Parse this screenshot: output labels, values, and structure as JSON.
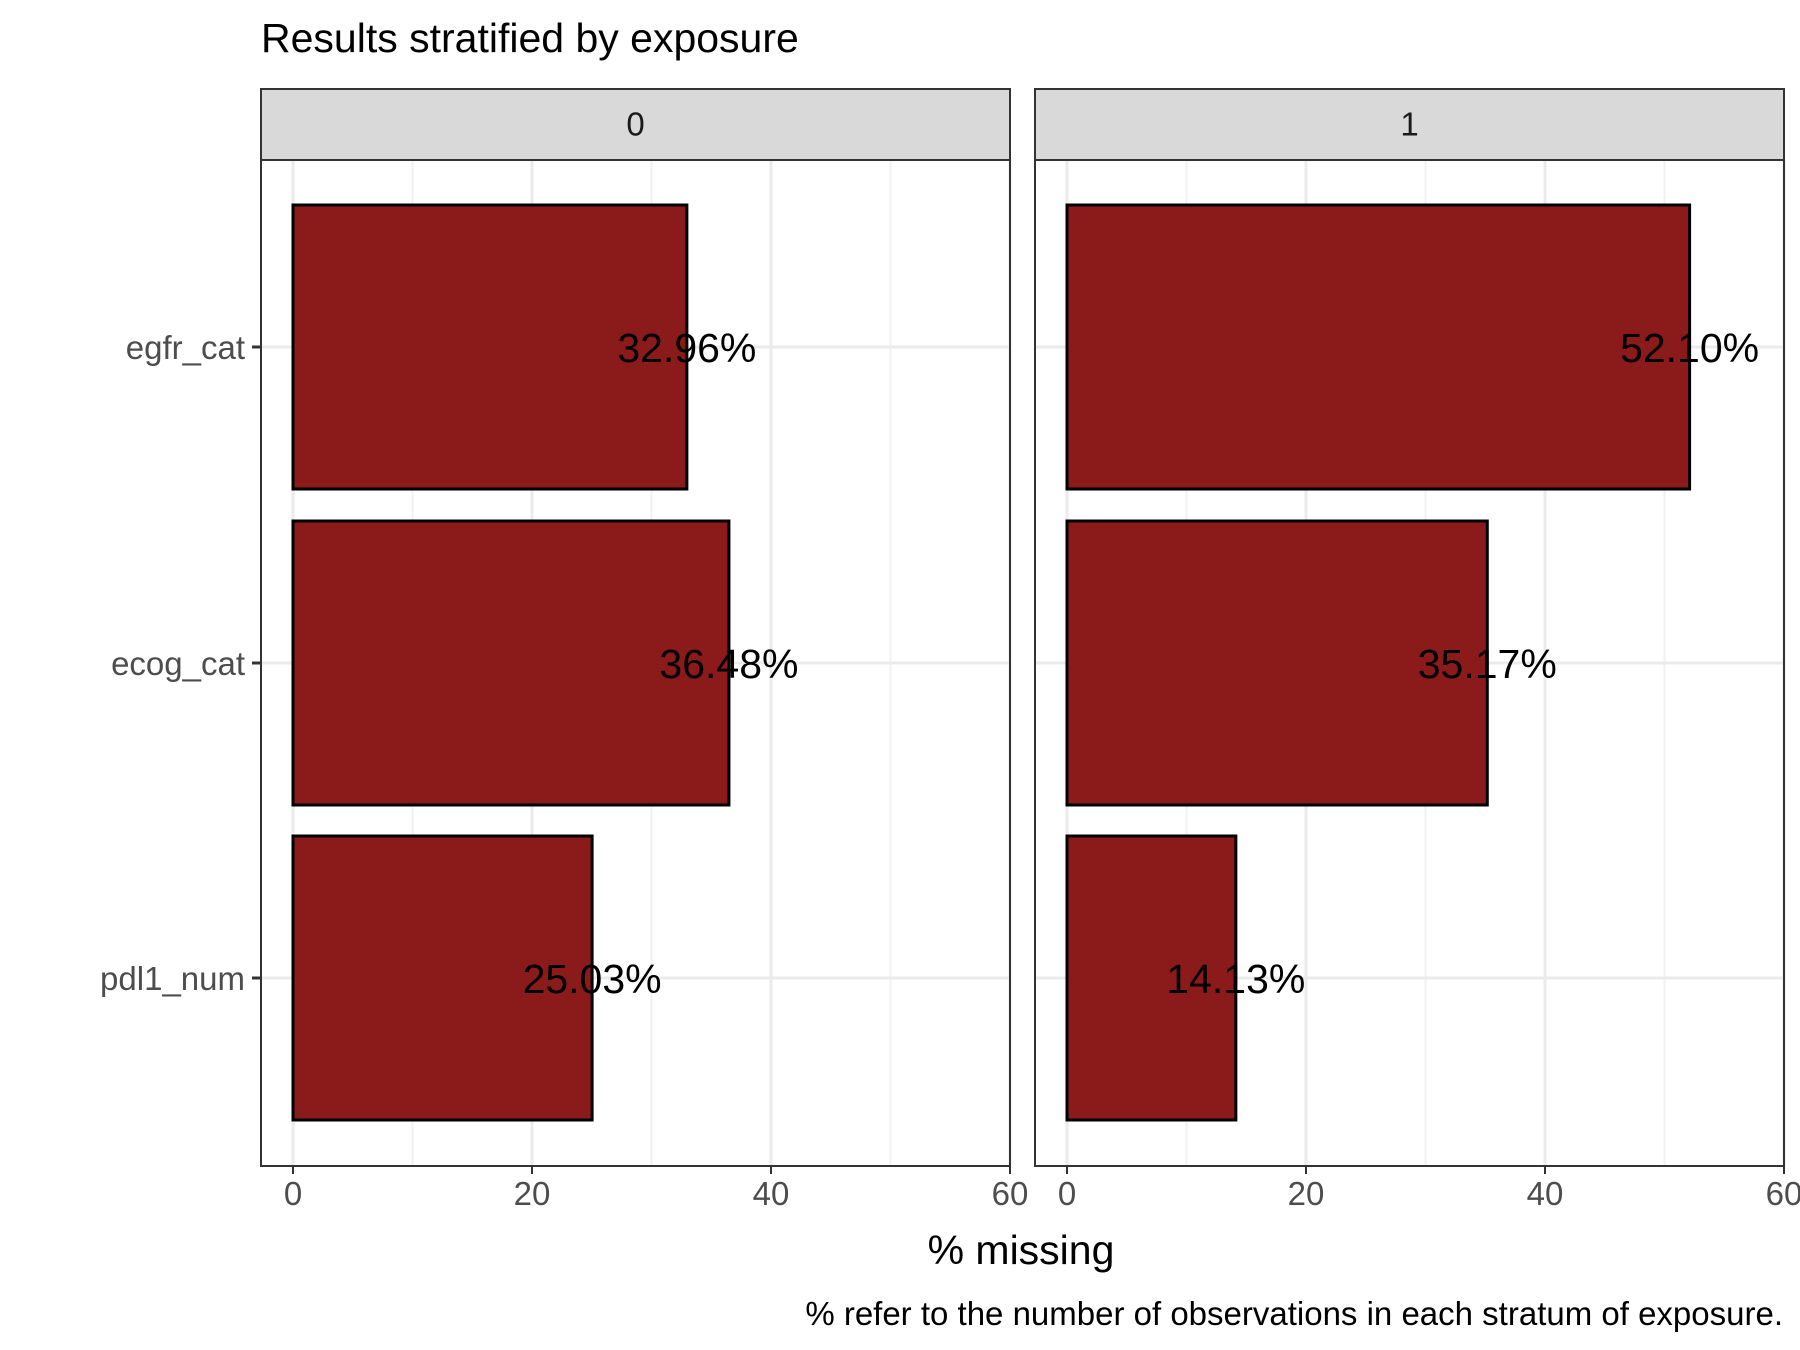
{
  "chart_data": {
    "type": "bar",
    "orientation": "horizontal",
    "title": "Results stratified by exposure",
    "xlabel": "% missing",
    "ylabel": "",
    "caption": "% refer to the number of observations in each stratum of exposure.",
    "categories": [
      "egfr_cat",
      "ecog_cat",
      "pdl1_num"
    ],
    "xlim": [
      0,
      60
    ],
    "x_ticks": [
      0,
      20,
      40,
      60
    ],
    "grid": true,
    "bar_color": "#8B1A1A",
    "strip_color": "#D9D9D9",
    "facets": [
      {
        "label": "0",
        "values": [
          32.96,
          36.48,
          25.03
        ],
        "labels": [
          "32.96%",
          "36.48%",
          "25.03%"
        ]
      },
      {
        "label": "1",
        "values": [
          52.1,
          35.17,
          14.13
        ],
        "labels": [
          "52.10%",
          "35.17%",
          "14.13%"
        ]
      }
    ]
  }
}
